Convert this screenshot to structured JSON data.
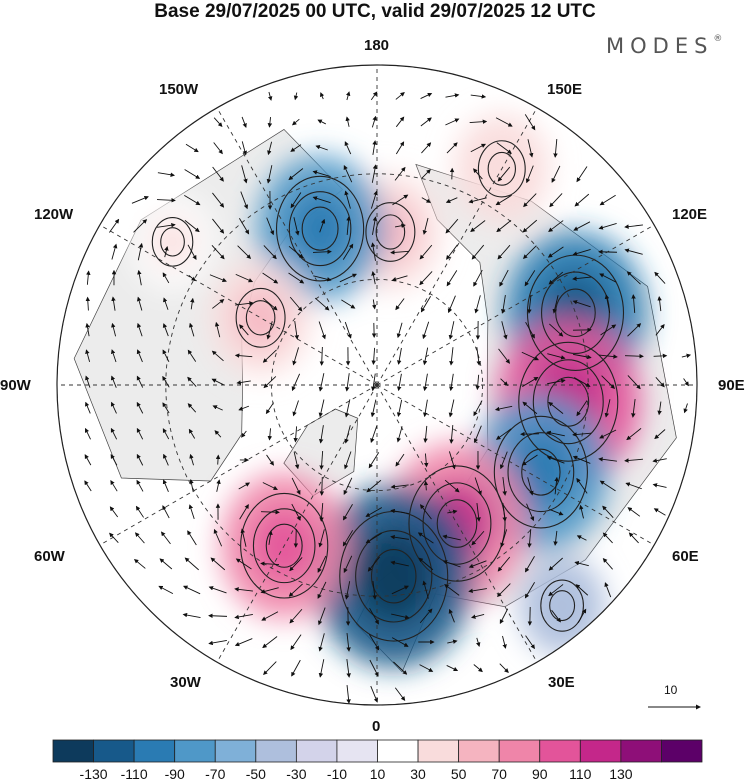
{
  "title": "Base 29/07/2025 00 UTC, valid 29/07/2025 12 UTC",
  "brand": {
    "name": "MODES",
    "mark": "®"
  },
  "longitude_labels": {
    "deg180": "180",
    "w150": "150W",
    "e150": "150E",
    "w120": "120W",
    "e120": "120E",
    "w90": "90W",
    "e90": "90E",
    "w60": "60W",
    "e60": "60E",
    "w30": "30W",
    "e30": "30E",
    "deg0": "0"
  },
  "reference_vector": {
    "label": "10"
  },
  "colorbar": {
    "ticks": [
      "-130",
      "-110",
      "-90",
      "-70",
      "-50",
      "-30",
      "-10",
      "10",
      "30",
      "50",
      "70",
      "90",
      "110",
      "130"
    ],
    "colors": [
      "#0d3a5c",
      "#17598a",
      "#2a7bb3",
      "#4f98c8",
      "#7fb0d8",
      "#aebfdd",
      "#d3d3ea",
      "#e6e4f2",
      "#ffffff",
      "#f9dcdc",
      "#f5b4c0",
      "#ef85a9",
      "#e3549a",
      "#c4278a",
      "#8e0f78",
      "#5c0068"
    ],
    "positive_color": "#f4a7b6",
    "negative_color": "#6fa3cf",
    "neutral_color": "#dcdcdc"
  },
  "anomaly_centers": [
    {
      "name": "anomaly-pos-n-pacific",
      "lon": 175,
      "r": 0.48,
      "value": 45
    },
    {
      "name": "anomaly-neg-alaska-w",
      "lon": -160,
      "r": 0.52,
      "value": -75
    },
    {
      "name": "anomaly-pos-bering-e",
      "lon": 150,
      "r": 0.78,
      "value": 40
    },
    {
      "name": "anomaly-neg-e-siberia",
      "lon": 110,
      "r": 0.66,
      "value": -90
    },
    {
      "name": "anomaly-pos-c-siberia",
      "lon": 85,
      "r": 0.6,
      "value": 95
    },
    {
      "name": "anomaly-neg-w-siberia",
      "lon": 62,
      "r": 0.58,
      "value": -85
    },
    {
      "name": "anomaly-pos-scandinavia",
      "lon": 30,
      "r": 0.5,
      "value": 90
    },
    {
      "name": "anomaly-neg-n-europe",
      "lon": 5,
      "r": 0.6,
      "value": -110
    },
    {
      "name": "anomaly-pos-n-atlantic",
      "lon": -30,
      "r": 0.58,
      "value": 75
    },
    {
      "name": "anomaly-pos-canada",
      "lon": -120,
      "r": 0.42,
      "value": 45
    },
    {
      "name": "anomaly-pos-sw-canada",
      "lon": -125,
      "r": 0.78,
      "value": 25
    },
    {
      "name": "anomaly-neg-china",
      "lon": 40,
      "r": 0.9,
      "value": -30
    }
  ]
}
